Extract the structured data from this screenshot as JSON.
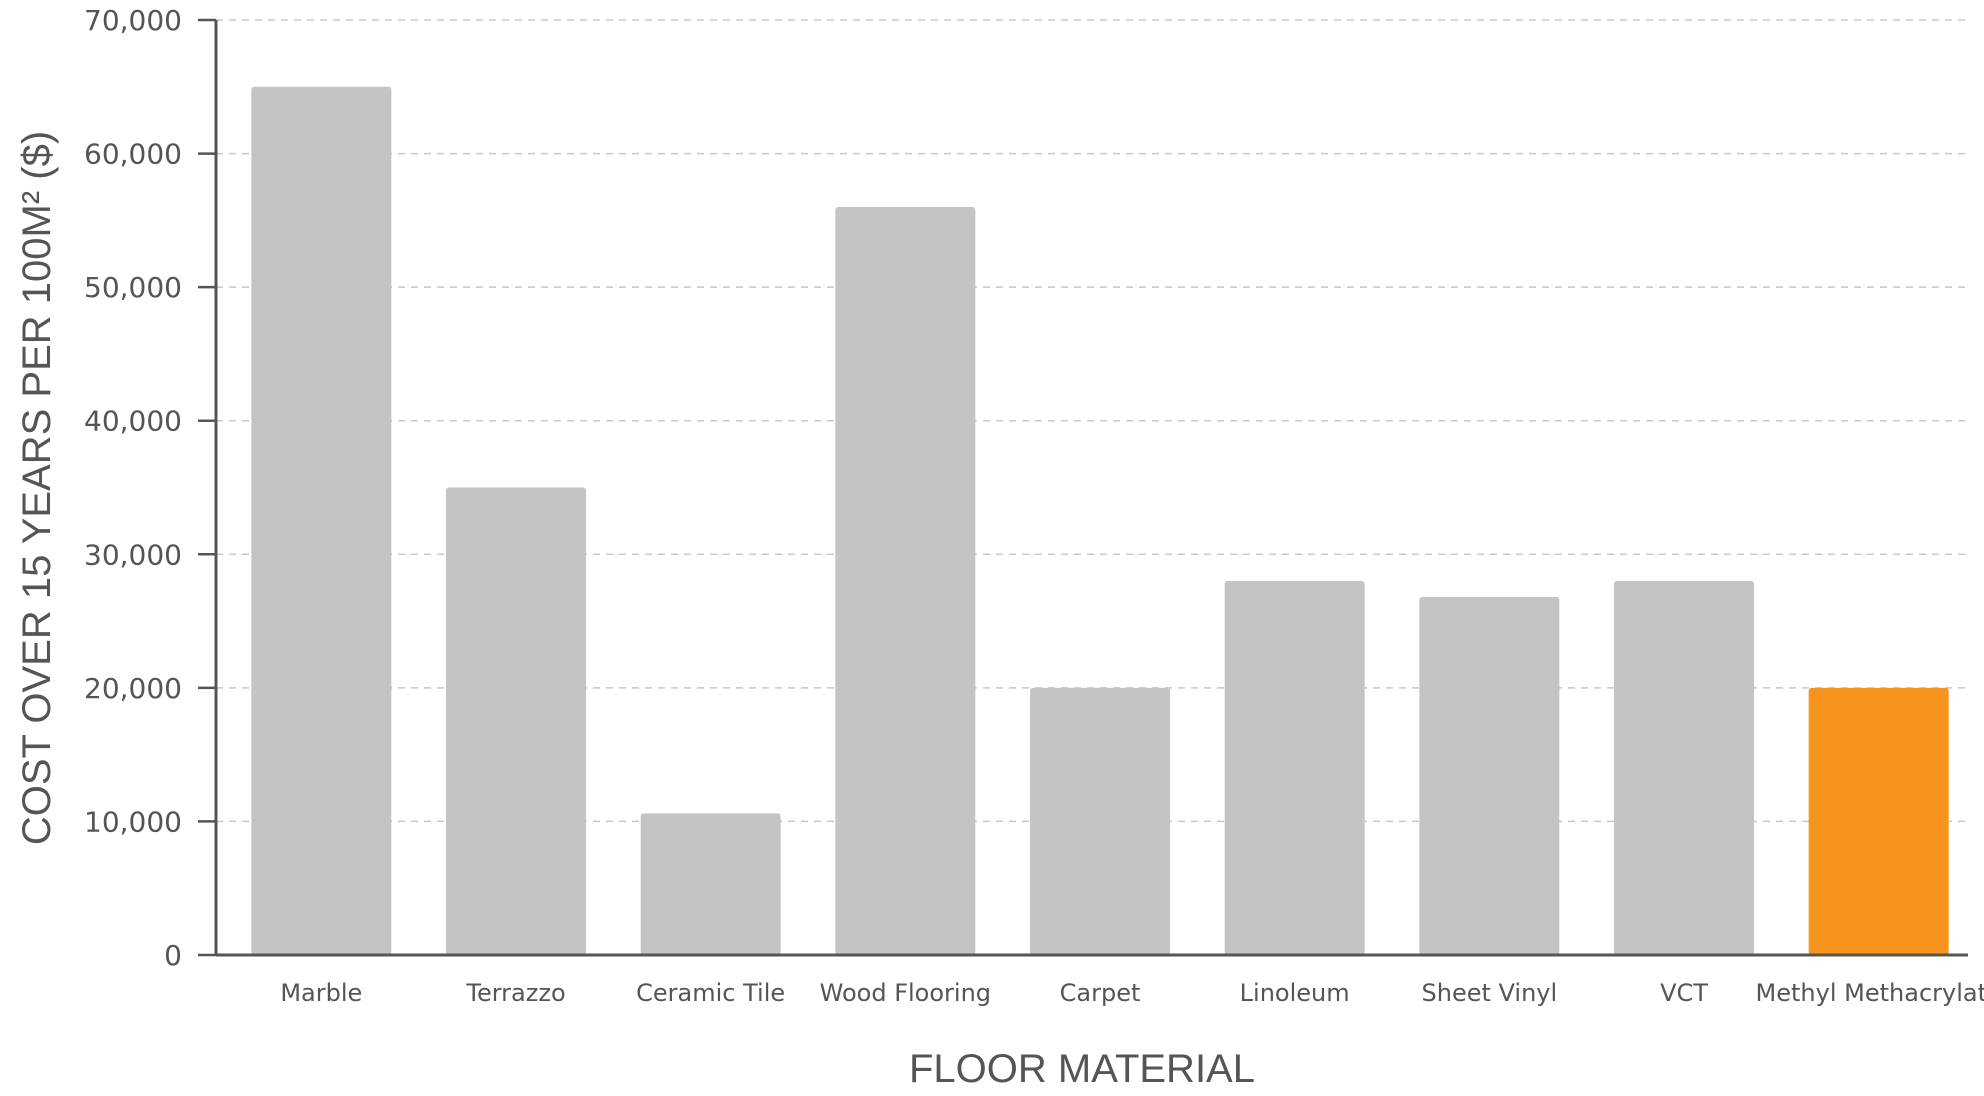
{
  "chart_data": {
    "type": "bar",
    "title": "",
    "xlabel": "FLOOR MATERIAL",
    "ylabel": "COST OVER 15 YEARS PER 100M² ($)",
    "ylim": [
      0,
      70000
    ],
    "yticks": [
      0,
      10000,
      20000,
      30000,
      40000,
      50000,
      60000,
      70000
    ],
    "ytick_labels": [
      "0",
      "10,000",
      "20,000",
      "30,000",
      "40,000",
      "50,000",
      "60,000",
      "70,000"
    ],
    "grid": true,
    "categories": [
      "Marble",
      "Terrazzo",
      "Ceramic Tile",
      "Wood Flooring",
      "Carpet",
      "Linoleum",
      "Sheet Vinyl",
      "VCT",
      "Methyl Methacrylate"
    ],
    "values": [
      65000,
      35000,
      10600,
      56000,
      20000,
      28000,
      26800,
      28000,
      20000
    ],
    "bar_colors": [
      "#c3c4c6",
      "#c3c4c6",
      "#c3c4c6",
      "#c3c4c6",
      "#c3c4c6",
      "#c3c4c6",
      "#c3c4c6",
      "#c3c4c6",
      "#f7941d"
    ]
  }
}
